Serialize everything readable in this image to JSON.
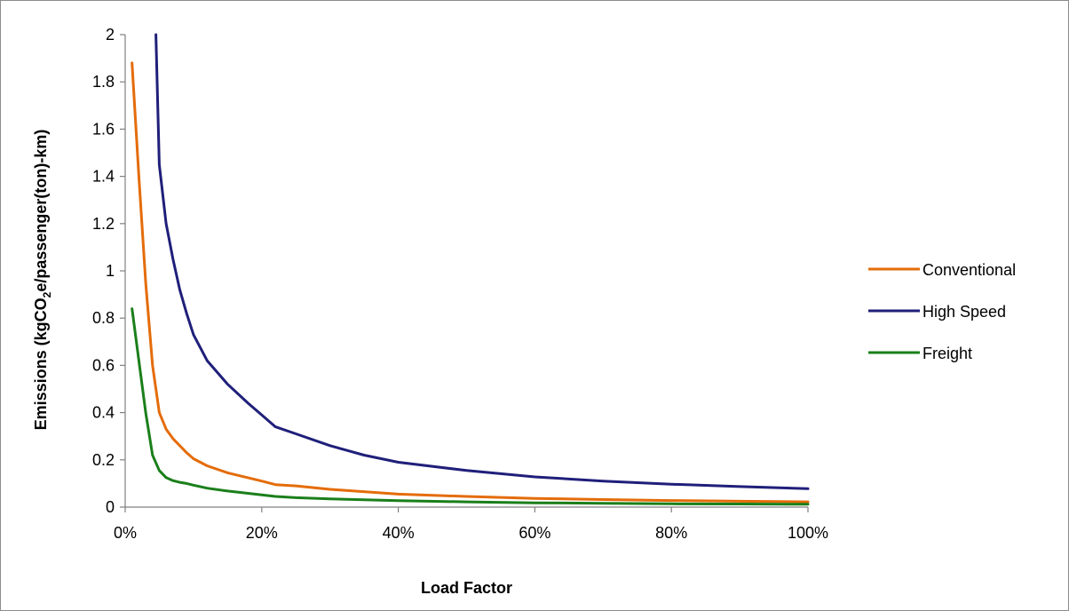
{
  "chart_data": {
    "type": "line",
    "title": "",
    "xlabel": "Load Factor",
    "ylabel_parts": {
      "before_sub": "Emissions (kgCO",
      "sub": "2",
      "after_sub": "e/passenger(ton)-km)"
    },
    "x_unit": "percent",
    "xlim": [
      0,
      100
    ],
    "ylim": [
      0,
      2
    ],
    "x_ticks": [
      {
        "value": 0,
        "label": "0%"
      },
      {
        "value": 20,
        "label": "20%"
      },
      {
        "value": 40,
        "label": "40%"
      },
      {
        "value": 60,
        "label": "60%"
      },
      {
        "value": 80,
        "label": "80%"
      },
      {
        "value": 100,
        "label": "100%"
      }
    ],
    "y_ticks": [
      {
        "value": 0,
        "label": "0"
      },
      {
        "value": 0.2,
        "label": "0.2"
      },
      {
        "value": 0.4,
        "label": "0.4"
      },
      {
        "value": 0.6,
        "label": "0.6"
      },
      {
        "value": 0.8,
        "label": "0.8"
      },
      {
        "value": 1,
        "label": "1"
      },
      {
        "value": 1.2,
        "label": "1.2"
      },
      {
        "value": 1.4,
        "label": "1.4"
      },
      {
        "value": 1.6,
        "label": "1.6"
      },
      {
        "value": 1.8,
        "label": "1.8"
      },
      {
        "value": 2,
        "label": "2"
      }
    ],
    "grid": false,
    "legend_position": "right",
    "series": [
      {
        "name": "Conventional",
        "color": "#e46c0a",
        "points": [
          [
            1,
            1.88
          ],
          [
            2,
            1.4
          ],
          [
            3,
            0.95
          ],
          [
            4,
            0.6
          ],
          [
            5,
            0.4
          ],
          [
            6,
            0.33
          ],
          [
            7,
            0.29
          ],
          [
            8,
            0.26
          ],
          [
            9,
            0.23
          ],
          [
            10,
            0.205
          ],
          [
            12,
            0.175
          ],
          [
            15,
            0.145
          ],
          [
            20,
            0.11
          ],
          [
            22,
            0.095
          ],
          [
            25,
            0.09
          ],
          [
            30,
            0.075
          ],
          [
            40,
            0.055
          ],
          [
            50,
            0.045
          ],
          [
            60,
            0.037
          ],
          [
            70,
            0.032
          ],
          [
            80,
            0.028
          ],
          [
            90,
            0.025
          ],
          [
            100,
            0.022
          ]
        ]
      },
      {
        "name": "High Speed",
        "color": "#1f1f7a",
        "points": [
          [
            4.5,
            2.0
          ],
          [
            5,
            1.45
          ],
          [
            6,
            1.2
          ],
          [
            7,
            1.05
          ],
          [
            8,
            0.92
          ],
          [
            9,
            0.82
          ],
          [
            10,
            0.73
          ],
          [
            12,
            0.62
          ],
          [
            15,
            0.52
          ],
          [
            18,
            0.44
          ],
          [
            20,
            0.39
          ],
          [
            22,
            0.34
          ],
          [
            25,
            0.31
          ],
          [
            30,
            0.26
          ],
          [
            35,
            0.22
          ],
          [
            40,
            0.19
          ],
          [
            50,
            0.155
          ],
          [
            60,
            0.128
          ],
          [
            70,
            0.11
          ],
          [
            80,
            0.097
          ],
          [
            90,
            0.087
          ],
          [
            100,
            0.078
          ]
        ]
      },
      {
        "name": "Freight",
        "color": "#1a7f1a",
        "points": [
          [
            1,
            0.84
          ],
          [
            2,
            0.62
          ],
          [
            3,
            0.4
          ],
          [
            4,
            0.22
          ],
          [
            5,
            0.155
          ],
          [
            6,
            0.125
          ],
          [
            7,
            0.112
          ],
          [
            8,
            0.105
          ],
          [
            9,
            0.1
          ],
          [
            10,
            0.093
          ],
          [
            12,
            0.08
          ],
          [
            15,
            0.068
          ],
          [
            20,
            0.052
          ],
          [
            22,
            0.045
          ],
          [
            25,
            0.04
          ],
          [
            30,
            0.035
          ],
          [
            40,
            0.027
          ],
          [
            50,
            0.022
          ],
          [
            60,
            0.018
          ],
          [
            70,
            0.016
          ],
          [
            80,
            0.014
          ],
          [
            90,
            0.013
          ],
          [
            100,
            0.012
          ]
        ]
      }
    ]
  }
}
